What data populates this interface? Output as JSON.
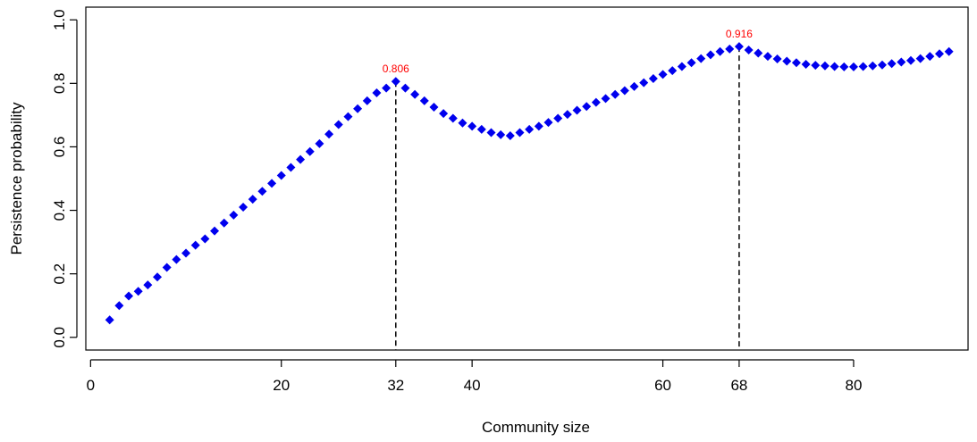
{
  "chart_data": {
    "type": "scatter",
    "title": "",
    "xlabel": "Community size",
    "ylabel": "Persistence probability",
    "xlim": [
      -0.5,
      92
    ],
    "ylim": [
      -0.04,
      1.04
    ],
    "x_ticks": [
      0,
      20,
      32,
      40,
      60,
      68,
      80
    ],
    "x_tick_labels": [
      "0",
      "20",
      "32",
      "40",
      "60",
      "68",
      "80"
    ],
    "y_ticks": [
      0.0,
      0.2,
      0.4,
      0.6,
      0.8,
      1.0
    ],
    "y_tick_labels": [
      "0.0",
      "0.2",
      "0.4",
      "0.6",
      "0.8",
      "1.0"
    ],
    "grid": false,
    "legend": "none",
    "marker": "diamond",
    "marker_color": "#0000ee",
    "annotation_color": "#ff0000",
    "annotations": [
      {
        "x": 32,
        "y": 0.806,
        "label": "0.806"
      },
      {
        "x": 68,
        "y": 0.916,
        "label": "0.916"
      }
    ],
    "series": [
      {
        "x": [
          2,
          3,
          4,
          5,
          6,
          7,
          8,
          9,
          10,
          11,
          12,
          13,
          14,
          15,
          16,
          17,
          18,
          19,
          20,
          21,
          22,
          23,
          24,
          25,
          26,
          27,
          28,
          29,
          30,
          31,
          32,
          33,
          34,
          35,
          36,
          37,
          38,
          39,
          40,
          41,
          42,
          43,
          44,
          45,
          46,
          47,
          48,
          49,
          50,
          51,
          52,
          53,
          54,
          55,
          56,
          57,
          58,
          59,
          60,
          61,
          62,
          63,
          64,
          65,
          66,
          67,
          68,
          69,
          70,
          71,
          72,
          73,
          74,
          75,
          76,
          77,
          78,
          79,
          80,
          81,
          82,
          83,
          84,
          85,
          86,
          87,
          88,
          89,
          90
        ],
        "values": [
          0.055,
          0.1,
          0.13,
          0.145,
          0.165,
          0.19,
          0.22,
          0.245,
          0.265,
          0.29,
          0.31,
          0.335,
          0.36,
          0.385,
          0.41,
          0.435,
          0.46,
          0.485,
          0.51,
          0.535,
          0.56,
          0.585,
          0.61,
          0.64,
          0.67,
          0.695,
          0.72,
          0.745,
          0.77,
          0.785,
          0.806,
          0.785,
          0.765,
          0.745,
          0.725,
          0.705,
          0.69,
          0.675,
          0.665,
          0.655,
          0.645,
          0.638,
          0.635,
          0.645,
          0.655,
          0.665,
          0.677,
          0.69,
          0.702,
          0.715,
          0.727,
          0.74,
          0.752,
          0.765,
          0.777,
          0.79,
          0.802,
          0.815,
          0.828,
          0.84,
          0.853,
          0.865,
          0.878,
          0.89,
          0.9,
          0.908,
          0.916,
          0.905,
          0.895,
          0.885,
          0.877,
          0.87,
          0.865,
          0.86,
          0.857,
          0.855,
          0.853,
          0.852,
          0.852,
          0.853,
          0.855,
          0.858,
          0.862,
          0.867,
          0.872,
          0.878,
          0.885,
          0.893,
          0.9
        ]
      }
    ]
  }
}
